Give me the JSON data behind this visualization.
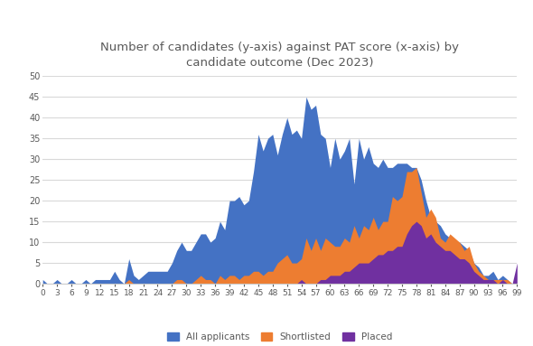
{
  "title": "Number of candidates (y-axis) against PAT score (x-axis) by\ncandidate outcome (Dec 2023)",
  "title_color": "#595959",
  "background_color": "#ffffff",
  "grid_color": "#d9d9d9",
  "xlim": [
    0,
    99
  ],
  "ylim": [
    0,
    50
  ],
  "yticks": [
    0,
    5,
    10,
    15,
    20,
    25,
    30,
    35,
    40,
    45,
    50
  ],
  "xtick_labels": [
    "0",
    "3",
    "6",
    "9",
    "12",
    "15",
    "18",
    "21",
    "24",
    "27",
    "30",
    "33",
    "36",
    "39",
    "42",
    "45",
    "48",
    "51",
    "54",
    "57",
    "60",
    "63",
    "66",
    "69",
    "72",
    "75",
    "78",
    "81",
    "84",
    "87",
    "90",
    "93",
    "96",
    "99"
  ],
  "xtick_positions": [
    0,
    3,
    6,
    9,
    12,
    15,
    18,
    21,
    24,
    27,
    30,
    33,
    36,
    39,
    42,
    45,
    48,
    51,
    54,
    57,
    60,
    63,
    66,
    69,
    72,
    75,
    78,
    81,
    84,
    87,
    90,
    93,
    96,
    99
  ],
  "legend_labels": [
    "All applicants",
    "Shortlisted",
    "Placed"
  ],
  "colors": {
    "all": "#4472c4",
    "shortlisted": "#ed7d31",
    "placed": "#7030a0"
  },
  "x": [
    0,
    1,
    2,
    3,
    4,
    5,
    6,
    7,
    8,
    9,
    10,
    11,
    12,
    13,
    14,
    15,
    16,
    17,
    18,
    19,
    20,
    21,
    22,
    23,
    24,
    25,
    26,
    27,
    28,
    29,
    30,
    31,
    32,
    33,
    34,
    35,
    36,
    37,
    38,
    39,
    40,
    41,
    42,
    43,
    44,
    45,
    46,
    47,
    48,
    49,
    50,
    51,
    52,
    53,
    54,
    55,
    56,
    57,
    58,
    59,
    60,
    61,
    62,
    63,
    64,
    65,
    66,
    67,
    68,
    69,
    70,
    71,
    72,
    73,
    74,
    75,
    76,
    77,
    78,
    79,
    80,
    81,
    82,
    83,
    84,
    85,
    86,
    87,
    88,
    89,
    90,
    91,
    92,
    93,
    94,
    95,
    96,
    97,
    98,
    99
  ],
  "all_applicants": [
    1,
    0,
    0,
    1,
    0,
    0,
    1,
    0,
    0,
    1,
    0,
    1,
    1,
    1,
    1,
    3,
    1,
    0,
    6,
    2,
    1,
    2,
    3,
    3,
    3,
    3,
    3,
    5,
    8,
    10,
    8,
    8,
    10,
    12,
    12,
    10,
    11,
    15,
    13,
    20,
    20,
    21,
    19,
    20,
    27,
    36,
    32,
    35,
    36,
    31,
    36,
    40,
    36,
    37,
    35,
    45,
    42,
    43,
    36,
    35,
    28,
    35,
    30,
    32,
    35,
    24,
    35,
    30,
    33,
    29,
    28,
    30,
    28,
    28,
    29,
    29,
    29,
    28,
    28,
    25,
    20,
    16,
    15,
    14,
    12,
    11,
    9,
    10,
    9,
    8,
    5,
    4,
    2,
    2,
    3,
    1,
    2,
    1,
    0,
    0
  ],
  "shortlisted": [
    0,
    0,
    0,
    0,
    0,
    0,
    0,
    0,
    0,
    0,
    0,
    0,
    0,
    0,
    0,
    0,
    0,
    0,
    1,
    0,
    0,
    0,
    0,
    0,
    0,
    0,
    0,
    0,
    1,
    1,
    0,
    0,
    1,
    2,
    1,
    1,
    0,
    2,
    1,
    2,
    2,
    1,
    2,
    2,
    3,
    3,
    2,
    3,
    3,
    5,
    6,
    7,
    5,
    5,
    6,
    11,
    8,
    11,
    8,
    11,
    10,
    9,
    9,
    11,
    10,
    14,
    11,
    14,
    13,
    16,
    13,
    15,
    15,
    21,
    20,
    21,
    27,
    27,
    28,
    22,
    16,
    18,
    16,
    11,
    10,
    12,
    11,
    10,
    8,
    9,
    5,
    3,
    2,
    1,
    1,
    1,
    1,
    1,
    0,
    0
  ],
  "placed": [
    0,
    0,
    0,
    0,
    0,
    0,
    0,
    0,
    0,
    0,
    0,
    0,
    0,
    0,
    0,
    0,
    0,
    0,
    0,
    0,
    0,
    0,
    0,
    0,
    0,
    0,
    0,
    0,
    0,
    0,
    0,
    0,
    0,
    0,
    0,
    0,
    0,
    0,
    0,
    0,
    0,
    0,
    0,
    0,
    0,
    0,
    0,
    0,
    0,
    0,
    0,
    0,
    0,
    0,
    1,
    0,
    0,
    0,
    1,
    1,
    2,
    2,
    2,
    3,
    3,
    4,
    5,
    5,
    5,
    6,
    7,
    7,
    8,
    8,
    9,
    9,
    12,
    14,
    15,
    14,
    11,
    12,
    10,
    9,
    8,
    8,
    7,
    6,
    6,
    5,
    3,
    2,
    1,
    1,
    1,
    0,
    1,
    0,
    0,
    5
  ],
  "figsize": [
    5.9,
    3.83
  ],
  "dpi": 100
}
